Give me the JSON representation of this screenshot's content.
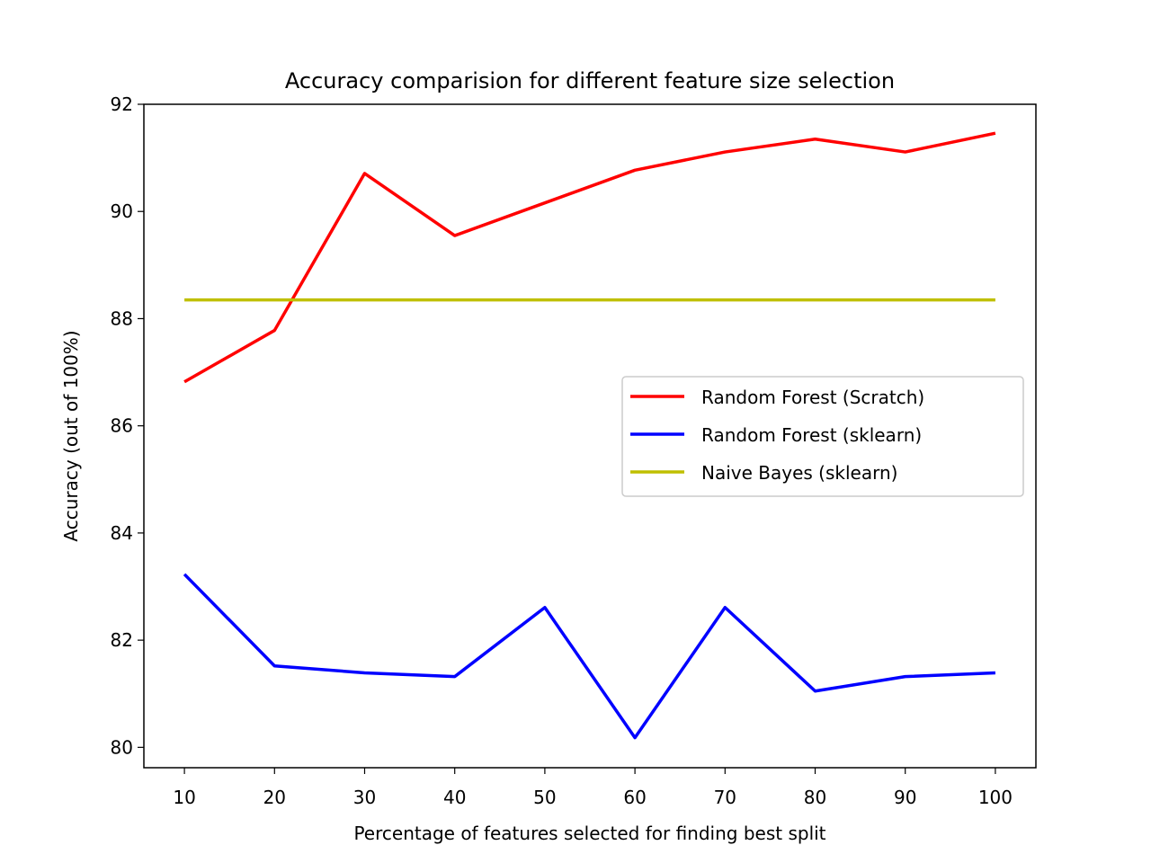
{
  "chart_data": {
    "type": "line",
    "title": "Accuracy comparision for different feature size selection",
    "xlabel": "Percentage of features selected for finding best split",
    "ylabel": "Accuracy (out of 100%)",
    "x": [
      10,
      20,
      30,
      40,
      50,
      60,
      70,
      80,
      90,
      100
    ],
    "xticks": [
      10,
      20,
      30,
      40,
      50,
      60,
      70,
      80,
      90,
      100
    ],
    "yticks": [
      80,
      82,
      84,
      86,
      88,
      90,
      92
    ],
    "xlim": [
      5.5,
      104.5
    ],
    "ylim": [
      79.62,
      92
    ],
    "grid": false,
    "legend_position": "center-right",
    "series": [
      {
        "name": "Random Forest (Scratch)",
        "color": "#ff0000",
        "values": [
          86.82,
          87.78,
          90.71,
          89.55,
          90.16,
          90.77,
          91.11,
          91.35,
          91.11,
          91.46
        ]
      },
      {
        "name": "Random Forest (sklearn)",
        "color": "#0000ff",
        "values": [
          83.23,
          81.52,
          81.39,
          81.32,
          82.61,
          80.18,
          82.61,
          81.05,
          81.32,
          81.39
        ]
      },
      {
        "name": "Naive Bayes (sklearn)",
        "color": "#bfbf00",
        "values": [
          88.35,
          88.35,
          88.35,
          88.35,
          88.35,
          88.35,
          88.35,
          88.35,
          88.35,
          88.35
        ]
      }
    ]
  }
}
